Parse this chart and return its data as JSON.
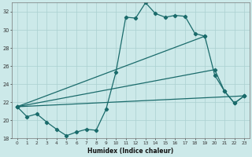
{
  "xlabel": "Humidex (Indice chaleur)",
  "background_color": "#cce9e9",
  "grid_color": "#aad0d0",
  "line_color": "#1a6b6b",
  "xlim": [
    -0.5,
    23.5
  ],
  "ylim": [
    18,
    33
  ],
  "xticks": [
    0,
    1,
    2,
    3,
    4,
    5,
    6,
    7,
    8,
    9,
    10,
    11,
    12,
    13,
    14,
    15,
    16,
    17,
    18,
    19,
    20,
    21,
    22,
    23
  ],
  "yticks": [
    18,
    20,
    22,
    24,
    26,
    28,
    30,
    32
  ],
  "line1_x": [
    0,
    1,
    2,
    3,
    4,
    5,
    6,
    7,
    8,
    9,
    10,
    11,
    12,
    13,
    14,
    15,
    16,
    17,
    18,
    19
  ],
  "line1_y": [
    21.5,
    20.4,
    20.7,
    19.8,
    19.0,
    18.3,
    18.7,
    19.0,
    18.9,
    21.2,
    25.3,
    31.4,
    31.3,
    33.0,
    31.8,
    31.4,
    31.6,
    31.5,
    29.6,
    29.3
  ],
  "line2_x": [
    0,
    23
  ],
  "line2_y": [
    21.5,
    22.7
  ],
  "line3_x": [
    0,
    20,
    21,
    22,
    23
  ],
  "line3_y": [
    21.5,
    25.6,
    23.2,
    21.9,
    22.7
  ],
  "line4_x": [
    0,
    19,
    20,
    21,
    22,
    23
  ],
  "line4_y": [
    21.5,
    29.3,
    25.0,
    23.2,
    21.9,
    22.7
  ]
}
